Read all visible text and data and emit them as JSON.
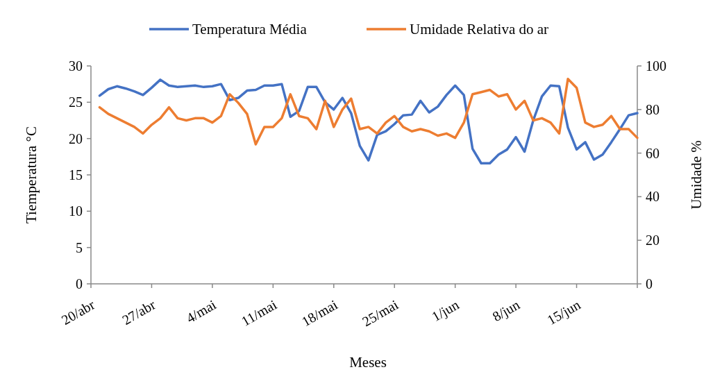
{
  "chart_data": {
    "type": "line",
    "xlabel": "Meses",
    "ylabel": "Tiemperatura °C",
    "y2label": "Umidade %",
    "legend": "top",
    "grid": false,
    "marker": "none",
    "line_style": "solid",
    "xlim": [
      "--04-20",
      "--06-22"
    ],
    "xticks": [
      {
        "value": "--04-20",
        "label": "20/abr"
      },
      {
        "value": "--04-27",
        "label": "27/abr"
      },
      {
        "value": "--05-04",
        "label": "4/mai"
      },
      {
        "value": "--05-11",
        "label": "11/mai"
      },
      {
        "value": "--05-18",
        "label": "18/mai"
      },
      {
        "value": "--05-25",
        "label": "25/mai"
      },
      {
        "value": "--06-01",
        "label": "1/jun"
      },
      {
        "value": "--06-08",
        "label": "8/jun"
      },
      {
        "value": "--06-15",
        "label": "15/jun"
      },
      {
        "value": "--06-22",
        "label": null
      }
    ],
    "ylim": [
      0,
      30
    ],
    "yticks": [
      0,
      5,
      10,
      15,
      20,
      25,
      30
    ],
    "y2lim": [
      0,
      100
    ],
    "y2ticks": [
      0,
      20,
      40,
      60,
      80,
      100
    ],
    "x": [
      "--04-21",
      "--04-22",
      "--04-23",
      "--04-24",
      "--04-25",
      "--04-26",
      "--04-27",
      "--04-28",
      "--04-29",
      "--04-30",
      "--05-01",
      "--05-02",
      "--05-03",
      "--05-04",
      "--05-05",
      "--05-06",
      "--05-07",
      "--05-08",
      "--05-09",
      "--05-10",
      "--05-11",
      "--05-12",
      "--05-13",
      "--05-14",
      "--05-15",
      "--05-16",
      "--05-17",
      "--05-18",
      "--05-19",
      "--05-20",
      "--05-21",
      "--05-22",
      "--05-23",
      "--05-24",
      "--05-25",
      "--05-26",
      "--05-27",
      "--05-28",
      "--05-29",
      "--05-30",
      "--05-31",
      "--06-01",
      "--06-02",
      "--06-03",
      "--06-04",
      "--06-05",
      "--06-06",
      "--06-07",
      "--06-08",
      "--06-09",
      "--06-10",
      "--06-11",
      "--06-12",
      "--06-13",
      "--06-14",
      "--06-15",
      "--06-16",
      "--06-17",
      "--06-18",
      "--06-19",
      "--06-20",
      "--06-21",
      "--06-22"
    ],
    "series": [
      {
        "name": "Temperatura Média",
        "color": "#4472c4",
        "values": [
          25.9,
          26.8,
          27.2,
          26.9,
          26.5,
          26.0,
          27.0,
          28.1,
          27.3,
          27.1,
          27.2,
          27.3,
          27.1,
          27.2,
          27.5,
          25.3,
          25.6,
          26.6,
          26.7,
          27.3,
          27.3,
          27.5,
          23.0,
          23.8,
          27.1,
          27.1,
          25.0,
          24.0,
          25.6,
          23.5,
          19.0,
          17.0,
          20.5,
          21.0,
          22.0,
          23.2,
          23.3,
          25.2,
          23.6,
          24.4,
          26.0,
          27.3,
          26.0,
          18.6,
          16.6,
          16.6,
          17.8,
          18.5,
          20.2,
          18.2,
          22.5,
          25.8,
          27.3,
          27.2,
          21.5,
          18.5,
          19.5,
          17.1,
          17.8,
          19.5,
          21.3,
          23.2,
          23.5
        ]
      },
      {
        "name": "Umidade Relativa do ar",
        "color": "#ed7d31",
        "axis": "y2",
        "values": [
          81,
          78,
          76,
          74,
          72,
          69,
          73,
          76,
          81,
          76,
          75,
          76,
          76,
          74,
          77,
          87,
          83,
          78,
          64,
          72,
          72,
          76,
          87,
          77,
          76,
          71,
          84,
          72,
          80,
          85,
          71,
          72,
          69,
          74,
          77,
          72,
          70,
          71,
          70,
          68,
          69,
          67,
          74,
          87,
          88,
          89,
          86,
          87,
          80,
          84,
          75,
          76,
          74,
          69,
          94,
          90,
          74,
          72,
          73,
          77,
          71,
          71,
          67
        ]
      }
    ]
  }
}
